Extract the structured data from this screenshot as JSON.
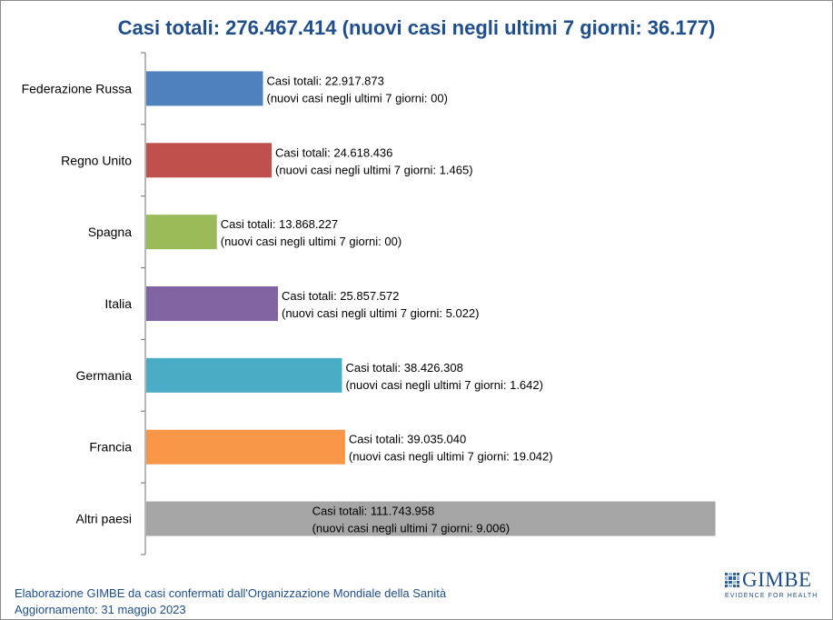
{
  "chart_data": {
    "type": "bar",
    "orientation": "horizontal",
    "title": "Casi totali: 276.467.414 (nuovi casi negli ultimi 7 giorni: 36.177)",
    "categories": [
      "Federazione Russa",
      "Regno Unito",
      "Spagna",
      "Italia",
      "Germania",
      "Francia",
      "Altri paesi"
    ],
    "values": [
      22917873,
      24618436,
      13868227,
      25857572,
      38426308,
      39035040,
      111743958
    ],
    "new_cases_7d": [
      "00",
      "1.465",
      "00",
      "5.022",
      "1.642",
      "19.042",
      "9.006"
    ],
    "data_labels": [
      [
        "Casi totali: 22.917.873",
        "(nuovi casi negli ultimi 7 giorni: 00)"
      ],
      [
        "Casi totali: 24.618.436",
        "(nuovi casi negli ultimi 7 giorni: 1.465)"
      ],
      [
        "Casi totali: 13.868.227",
        "(nuovi casi negli ultimi 7 giorni: 00)"
      ],
      [
        "Casi totali: 25.857.572",
        "(nuovi casi negli ultimi 7 giorni: 5.022)"
      ],
      [
        "Casi totali: 38.426.308",
        "(nuovi casi negli ultimi 7 giorni: 1.642)"
      ],
      [
        "Casi totali: 39.035.040",
        "(nuovi casi negli ultimi 7 giorni: 19.042)"
      ],
      [
        "Casi totali: 111.743.958",
        "(nuovi casi negli ultimi 7 giorni: 9.006)"
      ]
    ],
    "colors": [
      "#4f81bd",
      "#c0504d",
      "#9bbb59",
      "#8064a2",
      "#4bacc6",
      "#f79646",
      "#a5a5a5"
    ],
    "xlim": [
      0,
      112000000
    ],
    "grid": false,
    "legend": "none"
  },
  "footer": {
    "line1": "Elaborazione GIMBE da casi confermati dall'Organizzazione Mondiale della Sanità",
    "line2": "Aggiornamento: 31 maggio 2023"
  },
  "logo": {
    "word": "GIMBE",
    "tagline": "EVIDENCE FOR HEALTH"
  }
}
